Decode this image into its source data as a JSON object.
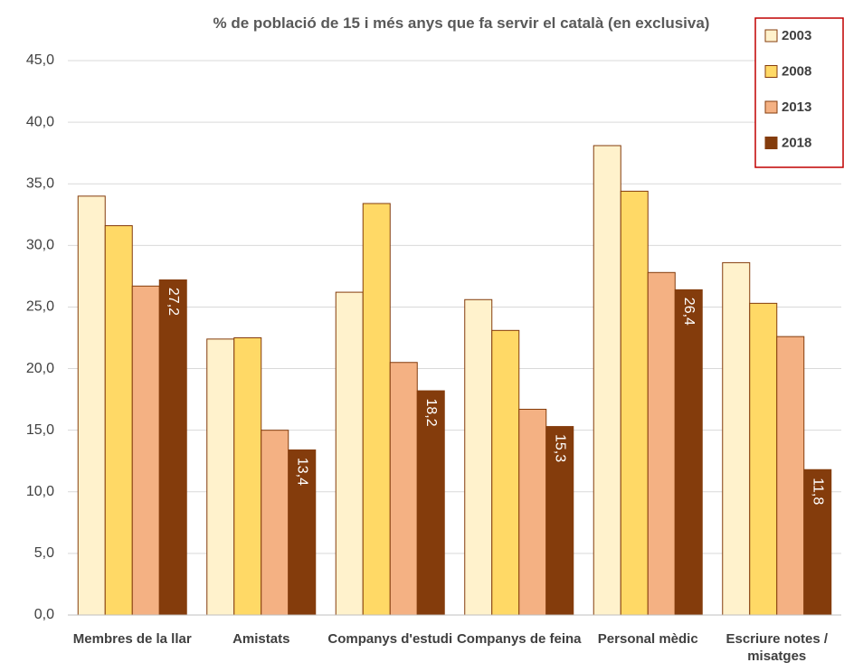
{
  "chart_data": {
    "type": "bar",
    "title": "% de població de 15 i més anys que fa servir el català (en exclusiva)",
    "categories": [
      "Membres de la llar",
      "Amistats",
      "Companys d'estudi",
      "Companys de feina",
      "Personal mèdic",
      "Escriure notes / misatges"
    ],
    "series": [
      {
        "name": "2003",
        "color": "#FFF2CC",
        "values": [
          34.0,
          22.4,
          26.2,
          25.6,
          38.1,
          28.6
        ]
      },
      {
        "name": "2008",
        "color": "#FFD966",
        "values": [
          31.6,
          22.5,
          33.4,
          23.1,
          34.4,
          25.3
        ]
      },
      {
        "name": "2013",
        "color": "#F4B183",
        "values": [
          26.7,
          15.0,
          20.5,
          16.7,
          27.8,
          22.6
        ]
      },
      {
        "name": "2018",
        "color": "#843C0C",
        "values": [
          27.2,
          13.4,
          18.2,
          15.3,
          26.4,
          11.8
        ],
        "value_labels": [
          "27,2",
          "13,4",
          "18,2",
          "15,3",
          "26,4",
          "11,8"
        ]
      }
    ],
    "ylim": [
      0,
      45
    ],
    "yticks": [
      {
        "value": 0,
        "label": "0,0"
      },
      {
        "value": 5,
        "label": "5,0"
      },
      {
        "value": 10,
        "label": "10,0"
      },
      {
        "value": 15,
        "label": "15,0"
      },
      {
        "value": 20,
        "label": "20,0"
      },
      {
        "value": 25,
        "label": "25,0"
      },
      {
        "value": 30,
        "label": "30,0"
      },
      {
        "value": 35,
        "label": "35,0"
      },
      {
        "value": 40,
        "label": "40,0"
      },
      {
        "value": 45,
        "label": "45,0"
      }
    ],
    "grid": true,
    "legend": "top-right"
  }
}
